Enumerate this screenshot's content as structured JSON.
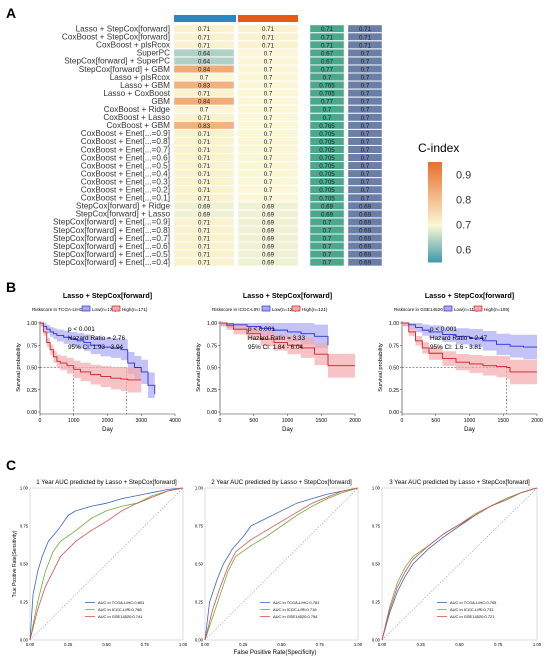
{
  "panel_labels": [
    "A",
    "B",
    "C"
  ],
  "heatmap": {
    "legend_title": "C-index",
    "legend_ticks": [
      "0.9",
      "0.8",
      "0.7",
      "0.6"
    ],
    "legend_tick_values": [
      0.9,
      0.8,
      0.7,
      0.6
    ],
    "value_range": [
      0.55,
      0.95
    ],
    "colors": {
      "low": "#3d97ab",
      "mid": "#fbf7d6",
      "high": "#e9712b",
      "col3_fill": "#4aa88c",
      "col4_fill": "#6a7fa8",
      "top_bar_blue": "#2e86c1",
      "top_bar_orange": "#e55b13"
    },
    "rows": [
      "Lasso + StepCox[forward]",
      "CoxBoost + StepCox[forward]",
      "CoxBoost + plsRcox",
      "SuperPC",
      "StepCox[forward] + SuperPC",
      "StepCox[forward] + GBM",
      "Lasso + plsRcox",
      "Lasso + GBM",
      "Lasso + CoxBoost",
      "GBM",
      "CoxBoost + Ridge",
      "CoxBoost + Lasso",
      "CoxBoost + GBM",
      "CoxBoost + Enet[...=0.9]",
      "CoxBoost + Enet[...=0.8]",
      "CoxBoost + Enet[...=0.7]",
      "CoxBoost + Enet[...=0.6]",
      "CoxBoost + Enet[...=0.5]",
      "CoxBoost + Enet[...=0.4]",
      "CoxBoost + Enet[...=0.3]",
      "CoxBoost + Enet[...=0.2]",
      "CoxBoost + Enet[...=0.1]",
      "StepCox[forward] + Ridge",
      "StepCox[forward] + Lasso",
      "StepCox[forward] + Enet[...=0.9]",
      "StepCox[forward] + Enet[...=0.8]",
      "StepCox[forward] + Enet[...=0.7]",
      "StepCox[forward] + Enet[...=0.6]",
      "StepCox[forward] + Enet[...=0.5]",
      "StepCox[forward] + Enet[...=0.4]"
    ],
    "col1": [
      "0.71",
      "0.71",
      "0.71",
      "0.64",
      "0.64",
      "0.84",
      "0.7",
      "0.83",
      "0.71",
      "0.84",
      "0.7",
      "0.71",
      "0.83",
      "0.71",
      "0.71",
      "0.71",
      "0.71",
      "0.71",
      "0.71",
      "0.71",
      "0.71",
      "0.71",
      "0.69",
      "0.69",
      "0.71",
      "0.71",
      "0.71",
      "0.71",
      "0.71",
      "0.71"
    ],
    "col2": [
      "0.71",
      "0.71",
      "0.71",
      "0.7",
      "0.7",
      "0.7",
      "0.7",
      "0.7",
      "0.7",
      "0.7",
      "0.7",
      "0.7",
      "0.7",
      "0.7",
      "0.7",
      "0.7",
      "0.7",
      "0.7",
      "0.7",
      "0.7",
      "0.7",
      "0.7",
      "0.69",
      "0.69",
      "0.69",
      "0.69",
      "0.69",
      "0.69",
      "0.69",
      "0.69"
    ],
    "col3": [
      "0.71",
      "0.71",
      "0.71",
      "0.67",
      "0.67",
      "0.77",
      "0.7",
      "0.765",
      "0.705",
      "0.77",
      "0.7",
      "0.7",
      "0.765",
      "0.705",
      "0.705",
      "0.705",
      "0.705",
      "0.705",
      "0.705",
      "0.705",
      "0.705",
      "0.705",
      "0.69",
      "0.69",
      "0.7",
      "0.7",
      "0.7",
      "0.7",
      "0.7",
      "0.7"
    ],
    "col4": [
      "0.71",
      "0.71",
      "0.71",
      "0.7",
      "0.7",
      "0.7",
      "0.7",
      "0.7",
      "0.7",
      "0.7",
      "0.7",
      "0.7",
      "0.7",
      "0.7",
      "0.7",
      "0.7",
      "0.7",
      "0.7",
      "0.7",
      "0.7",
      "0.7",
      "0.7",
      "0.69",
      "0.69",
      "0.69",
      "0.69",
      "0.69",
      "0.69",
      "0.69",
      "0.69"
    ]
  },
  "chart_data": [
    {
      "type": "line",
      "title": "Lasso + StepCox[forward]",
      "legend_title": "Riskscore in TCGA-LIHC",
      "series": [
        {
          "name": "Low(n=172)",
          "color": "#2f2fd6",
          "band": "#a9a9f5",
          "x": [
            0,
            100,
            200,
            300,
            400,
            500,
            700,
            900,
            1100,
            1300,
            1500,
            1800,
            2100,
            2400,
            2600,
            2800,
            3000,
            3200,
            3400
          ],
          "y": [
            1.0,
            0.96,
            0.93,
            0.9,
            0.88,
            0.86,
            0.84,
            0.82,
            0.8,
            0.78,
            0.75,
            0.73,
            0.72,
            0.7,
            0.55,
            0.5,
            0.45,
            0.3,
            0.2
          ]
        },
        {
          "name": "High(n=171)",
          "color": "#c8232c",
          "band": "#f5a9ad",
          "x": [
            0,
            100,
            200,
            300,
            400,
            500,
            600,
            800,
            1000,
            1200,
            1500,
            1800,
            2100,
            2400,
            2600,
            3000
          ],
          "y": [
            1.0,
            0.9,
            0.78,
            0.7,
            0.62,
            0.57,
            0.55,
            0.52,
            0.48,
            0.45,
            0.42,
            0.4,
            0.38,
            0.37,
            0.36,
            0.36
          ]
        }
      ],
      "annotations": [
        "p < 0.001",
        "Hazard Ratio = 2.76",
        "95% CI: 1.93 - 3.94"
      ],
      "median_lines": [
        1000,
        2560
      ],
      "xlabel": "Day",
      "ylabel": "Survival probability",
      "xlim": [
        0,
        4000
      ],
      "ylim": [
        0,
        1.0
      ],
      "xticks": [
        "0",
        "1000",
        "2000",
        "3000",
        "4000"
      ],
      "yticks": [
        "0.00",
        "0.25",
        "0.50",
        "0.75",
        "1.00"
      ]
    },
    {
      "type": "line",
      "title": "Lasso + StepCox[forward]",
      "legend_title": "Riskscore in ICGC-LIRI",
      "series": [
        {
          "name": "Low(n=122)",
          "color": "#2f2fd6",
          "band": "#a9a9f5",
          "x": [
            0,
            100,
            200,
            400,
            600,
            800,
            1000,
            1200,
            1400,
            1600
          ],
          "y": [
            1.0,
            0.99,
            0.98,
            0.96,
            0.94,
            0.92,
            0.9,
            0.88,
            0.85,
            0.75
          ]
        },
        {
          "name": "High(n=121)",
          "color": "#c8232c",
          "band": "#f5a9ad",
          "x": [
            0,
            100,
            200,
            400,
            600,
            800,
            1000,
            1200,
            1400,
            1600,
            2000
          ],
          "y": [
            1.0,
            0.97,
            0.93,
            0.88,
            0.82,
            0.78,
            0.75,
            0.72,
            0.65,
            0.52,
            0.52
          ]
        }
      ],
      "annotations": [
        "p < 0.001",
        "Hazard Ratio = 3.33",
        "95% CI: 1.84 - 6.04"
      ],
      "median_lines": [],
      "xlabel": "Day",
      "ylabel": "Survival probability",
      "xlim": [
        0,
        2000
      ],
      "ylim": [
        0,
        1.0
      ],
      "xticks": [
        "0",
        "500",
        "1000",
        "1500",
        "2000"
      ],
      "yticks": [
        "0.00",
        "0.25",
        "0.50",
        "0.75",
        "1.00"
      ]
    },
    {
      "type": "line",
      "title": "Lasso + StepCox[forward]",
      "legend_title": "Riskscore in GSE14520",
      "series": [
        {
          "name": "Low(n=110)",
          "color": "#2f2fd6",
          "band": "#a9a9f5",
          "x": [
            0,
            100,
            200,
            300,
            400,
            600,
            800,
            1000,
            1200,
            1400,
            1600,
            1800,
            2000
          ],
          "y": [
            1.0,
            0.98,
            0.95,
            0.92,
            0.9,
            0.87,
            0.85,
            0.83,
            0.8,
            0.76,
            0.74,
            0.73,
            0.73
          ]
        },
        {
          "name": "High(n=109)",
          "color": "#c8232c",
          "band": "#f5a9ad",
          "x": [
            0,
            100,
            200,
            300,
            400,
            600,
            800,
            1000,
            1200,
            1400,
            1550,
            1600,
            2000
          ],
          "y": [
            1.0,
            0.9,
            0.8,
            0.72,
            0.66,
            0.6,
            0.56,
            0.54,
            0.52,
            0.51,
            0.5,
            0.45,
            0.45
          ]
        }
      ],
      "annotations": [
        "p < 0.001",
        "Hazard Ratio = 2.47",
        "95% CI: 1.6 - 3.81"
      ],
      "median_lines": [
        1550
      ],
      "xlabel": "Day",
      "ylabel": "Survival probability",
      "xlim": [
        0,
        2000
      ],
      "ylim": [
        0,
        1.0
      ],
      "xticks": [
        "0",
        "500",
        "1000",
        "1500",
        "2000"
      ],
      "yticks": [
        "0.00",
        "0.25",
        "0.50",
        "0.75",
        "1.00"
      ]
    },
    {
      "type": "line",
      "title": "1 Year AUC predicted by Lasso + StepCox[forward]",
      "xlabel": "False Positive Rate(Specificity)",
      "ylabel": "True Positive Rate(Sensitivity)",
      "xticks": [
        "0.00",
        "0.25",
        "0.50",
        "0.75",
        "1.00"
      ],
      "yticks": [
        "0.00",
        "0.25",
        "0.50",
        "0.75",
        "1.00"
      ],
      "xlim": [
        0,
        1
      ],
      "ylim": [
        0,
        1
      ],
      "series": [
        {
          "name": "AUC in TCGA-LIHC:0.801",
          "color": "#3a66c4",
          "x": [
            0,
            0.02,
            0.05,
            0.08,
            0.12,
            0.18,
            0.25,
            0.3,
            0.4,
            0.5,
            0.6,
            0.7,
            0.8,
            0.9,
            1.0
          ],
          "y": [
            0,
            0.3,
            0.45,
            0.55,
            0.65,
            0.72,
            0.82,
            0.85,
            0.88,
            0.9,
            0.93,
            0.95,
            0.97,
            0.99,
            1.0
          ]
        },
        {
          "name": "AUC in ICGC-LIRI:0.768",
          "color": "#6fae3a",
          "x": [
            0,
            0.05,
            0.1,
            0.15,
            0.2,
            0.3,
            0.4,
            0.5,
            0.6,
            0.7,
            0.8,
            0.9,
            1.0
          ],
          "y": [
            0,
            0.25,
            0.45,
            0.58,
            0.65,
            0.72,
            0.8,
            0.85,
            0.88,
            0.9,
            0.95,
            0.98,
            1.0
          ]
        },
        {
          "name": "AUC in GSE14520:0.741",
          "color": "#d94f4f",
          "x": [
            0,
            0.05,
            0.1,
            0.15,
            0.2,
            0.3,
            0.4,
            0.5,
            0.6,
            0.7,
            0.8,
            0.9,
            1.0
          ],
          "y": [
            0,
            0.2,
            0.35,
            0.45,
            0.55,
            0.65,
            0.72,
            0.78,
            0.85,
            0.9,
            0.94,
            0.98,
            1.0
          ]
        }
      ]
    },
    {
      "type": "line",
      "title": "2 Year AUC predicted by Lasso + StepCox[forward]",
      "xlabel": "False Positive Rate(Specificity)",
      "ylabel": "True Positive Rate(Sensitivity)",
      "xticks": [
        "0.00",
        "0.25",
        "0.50",
        "0.75",
        "1.00"
      ],
      "yticks": [
        "0.00",
        "0.25",
        "0.50",
        "0.75",
        "1.00"
      ],
      "xlim": [
        0,
        1
      ],
      "ylim": [
        0,
        1
      ],
      "series": [
        {
          "name": "AUC in TCGA-LIHC:0.761",
          "color": "#3a66c4",
          "x": [
            0,
            0.03,
            0.08,
            0.12,
            0.18,
            0.25,
            0.3,
            0.4,
            0.5,
            0.6,
            0.7,
            0.8,
            0.9,
            1.0
          ],
          "y": [
            0,
            0.25,
            0.4,
            0.5,
            0.6,
            0.68,
            0.75,
            0.8,
            0.85,
            0.9,
            0.93,
            0.96,
            0.98,
            1.0
          ]
        },
        {
          "name": "AUC in ICGC-LIRI:0.716",
          "color": "#6fae3a",
          "x": [
            0,
            0.05,
            0.1,
            0.15,
            0.2,
            0.3,
            0.4,
            0.5,
            0.6,
            0.7,
            0.8,
            0.9,
            1.0
          ],
          "y": [
            0,
            0.15,
            0.3,
            0.45,
            0.55,
            0.62,
            0.68,
            0.75,
            0.82,
            0.88,
            0.93,
            0.97,
            1.0
          ]
        },
        {
          "name": "AUC in GSE14520:0.754",
          "color": "#d94f4f",
          "x": [
            0,
            0.05,
            0.1,
            0.15,
            0.2,
            0.3,
            0.4,
            0.5,
            0.6,
            0.7,
            0.8,
            0.9,
            1.0
          ],
          "y": [
            0,
            0.2,
            0.35,
            0.48,
            0.58,
            0.66,
            0.72,
            0.78,
            0.84,
            0.9,
            0.94,
            0.98,
            1.0
          ]
        }
      ]
    },
    {
      "type": "line",
      "title": "3 Year AUC predicted by Lasso + StepCox[forward]",
      "xlabel": "False Positive Rate(Specificity)",
      "ylabel": "True Positive Rate(Sensitivity)",
      "xticks": [
        "0.00",
        "0.25",
        "0.50",
        "0.75",
        "1.00"
      ],
      "yticks": [
        "0.00",
        "0.25",
        "0.50",
        "0.75",
        "1.00"
      ],
      "xlim": [
        0,
        1
      ],
      "ylim": [
        0,
        1
      ],
      "series": [
        {
          "name": "AUC in TCGA-LIHC:0.705",
          "color": "#3a66c4",
          "x": [
            0,
            0.05,
            0.1,
            0.15,
            0.2,
            0.3,
            0.4,
            0.5,
            0.6,
            0.7,
            0.8,
            0.9,
            1.0
          ],
          "y": [
            0,
            0.18,
            0.32,
            0.42,
            0.5,
            0.6,
            0.68,
            0.75,
            0.82,
            0.88,
            0.93,
            0.97,
            1.0
          ]
        },
        {
          "name": "AUC in ICGC-LIRI:0.731",
          "color": "#6fae3a",
          "x": [
            0,
            0.05,
            0.1,
            0.15,
            0.2,
            0.3,
            0.4,
            0.5,
            0.6,
            0.7,
            0.8,
            0.9,
            1.0
          ],
          "y": [
            0,
            0.22,
            0.38,
            0.48,
            0.55,
            0.62,
            0.7,
            0.76,
            0.83,
            0.88,
            0.93,
            0.97,
            1.0
          ]
        },
        {
          "name": "AUC in GSE14520:0.721",
          "color": "#d94f4f",
          "x": [
            0,
            0.05,
            0.1,
            0.15,
            0.2,
            0.3,
            0.4,
            0.5,
            0.6,
            0.7,
            0.8,
            0.9,
            1.0
          ],
          "y": [
            0,
            0.2,
            0.35,
            0.45,
            0.53,
            0.62,
            0.7,
            0.76,
            0.82,
            0.88,
            0.92,
            0.97,
            1.0
          ]
        }
      ]
    }
  ]
}
